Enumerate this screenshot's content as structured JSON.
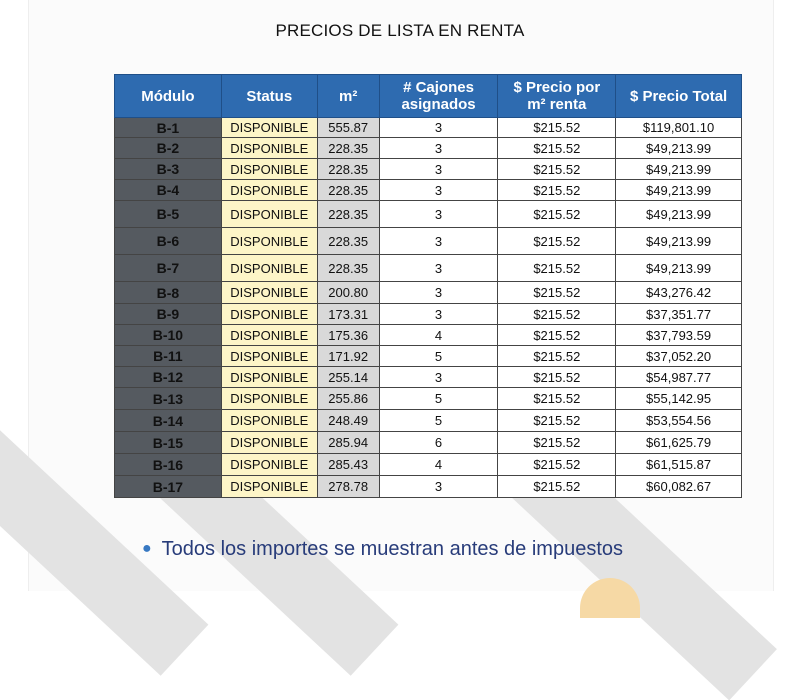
{
  "title": "PRECIOS DE LISTA EN RENTA",
  "table": {
    "headers": {
      "modulo": "Módulo",
      "status": "Status",
      "m2": "m²",
      "cajones_1": "# Cajones",
      "cajones_2": "asignados",
      "precio_1": "$ Precio por",
      "precio_2": "m² renta",
      "total": "$ Precio Total"
    },
    "rows": [
      {
        "modulo": "B-1",
        "status": "DISPONIBLE",
        "m2": "555.87",
        "cajones": "3",
        "precio": "$215.52",
        "total": "$119,801.10"
      },
      {
        "modulo": "B-2",
        "status": "DISPONIBLE",
        "m2": "228.35",
        "cajones": "3",
        "precio": "$215.52",
        "total": "$49,213.99"
      },
      {
        "modulo": "B-3",
        "status": "DISPONIBLE",
        "m2": "228.35",
        "cajones": "3",
        "precio": "$215.52",
        "total": "$49,213.99"
      },
      {
        "modulo": "B-4",
        "status": "DISPONIBLE",
        "m2": "228.35",
        "cajones": "3",
        "precio": "$215.52",
        "total": "$49,213.99"
      },
      {
        "modulo": "B-5",
        "status": "DISPONIBLE",
        "m2": "228.35",
        "cajones": "3",
        "precio": "$215.52",
        "total": "$49,213.99"
      },
      {
        "modulo": "B-6",
        "status": "DISPONIBLE",
        "m2": "228.35",
        "cajones": "3",
        "precio": "$215.52",
        "total": "$49,213.99"
      },
      {
        "modulo": "B-7",
        "status": "DISPONIBLE",
        "m2": "228.35",
        "cajones": "3",
        "precio": "$215.52",
        "total": "$49,213.99"
      },
      {
        "modulo": "B-8",
        "status": "DISPONIBLE",
        "m2": "200.80",
        "cajones": "3",
        "precio": "$215.52",
        "total": "$43,276.42"
      },
      {
        "modulo": "B-9",
        "status": "DISPONIBLE",
        "m2": "173.31",
        "cajones": "3",
        "precio": "$215.52",
        "total": "$37,351.77"
      },
      {
        "modulo": "B-10",
        "status": "DISPONIBLE",
        "m2": "175.36",
        "cajones": "4",
        "precio": "$215.52",
        "total": "$37,793.59"
      },
      {
        "modulo": "B-11",
        "status": "DISPONIBLE",
        "m2": "171.92",
        "cajones": "5",
        "precio": "$215.52",
        "total": "$37,052.20"
      },
      {
        "modulo": "B-12",
        "status": "DISPONIBLE",
        "m2": "255.14",
        "cajones": "3",
        "precio": "$215.52",
        "total": "$54,987.77"
      },
      {
        "modulo": "B-13",
        "status": "DISPONIBLE",
        "m2": "255.86",
        "cajones": "5",
        "precio": "$215.52",
        "total": "$55,142.95"
      },
      {
        "modulo": "B-14",
        "status": "DISPONIBLE",
        "m2": "248.49",
        "cajones": "5",
        "precio": "$215.52",
        "total": "$53,554.56"
      },
      {
        "modulo": "B-15",
        "status": "DISPONIBLE",
        "m2": "285.94",
        "cajones": "6",
        "precio": "$215.52",
        "total": "$61,625.79"
      },
      {
        "modulo": "B-16",
        "status": "DISPONIBLE",
        "m2": "285.43",
        "cajones": "4",
        "precio": "$215.52",
        "total": "$61,515.87"
      },
      {
        "modulo": "B-17",
        "status": "DISPONIBLE",
        "m2": "278.78",
        "cajones": "3",
        "precio": "$215.52",
        "total": "$60,082.67"
      }
    ]
  },
  "note": "Todos los importes se muestran antes de impuestos",
  "colors": {
    "header_bg": "#2e6bb0",
    "modulo_bg": "#555a60",
    "status_bg": "#fdf5c7",
    "m2_bg": "#d9d9d9",
    "note_text": "#283c7a"
  }
}
